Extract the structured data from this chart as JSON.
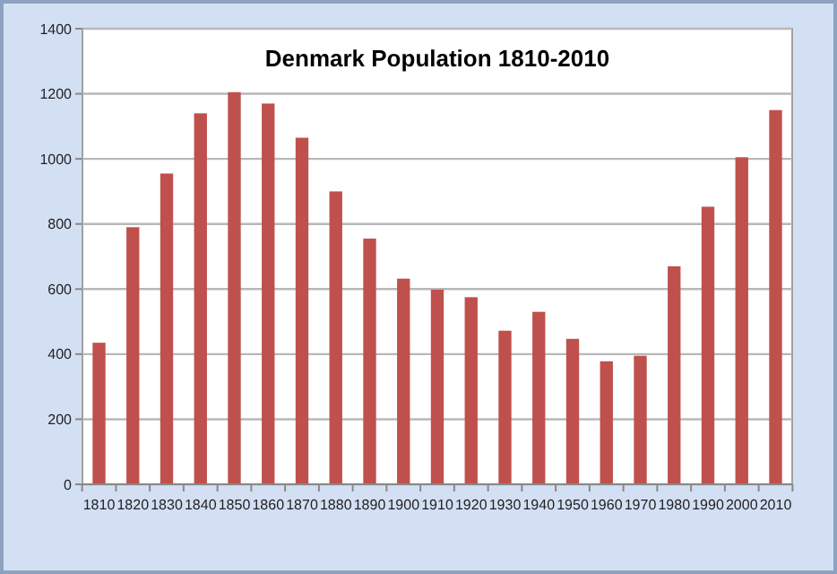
{
  "chart_data": {
    "type": "bar",
    "title": "Denmark Population 1810-2010",
    "categories": [
      "1810",
      "1820",
      "1830",
      "1840",
      "1850",
      "1860",
      "1870",
      "1880",
      "1890",
      "1900",
      "1910",
      "1920",
      "1930",
      "1940",
      "1950",
      "1960",
      "1970",
      "1980",
      "1990",
      "2000",
      "2010"
    ],
    "values": [
      435,
      790,
      955,
      1140,
      1205,
      1170,
      1065,
      900,
      755,
      632,
      598,
      575,
      472,
      530,
      447,
      378,
      395,
      670,
      853,
      1005,
      1150
    ],
    "color": "#c0504d",
    "ylim": [
      0,
      1400
    ],
    "yticks": [
      0,
      200,
      400,
      600,
      800,
      1000,
      1200,
      1400
    ],
    "grid": "y"
  }
}
